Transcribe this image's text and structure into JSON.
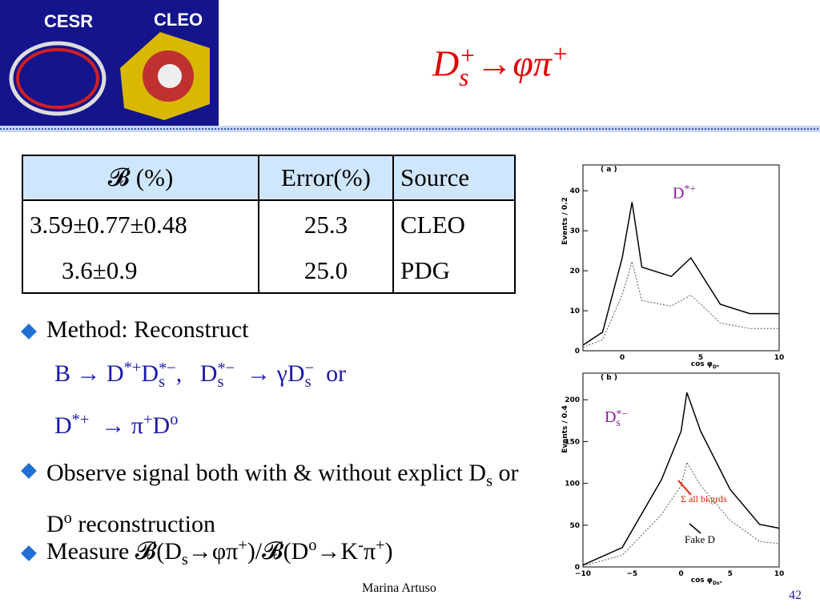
{
  "header": {
    "logo_left": "CESR",
    "logo_right": "CLEO",
    "title": [
      "D",
      {
        "sup": "+",
        "sub": "s"
      },
      "→φπ",
      {
        "sup": "+"
      }
    ]
  },
  "table": {
    "columns": [
      "𝓑 (%)",
      "Error(%)",
      "Source"
    ],
    "rows": [
      [
        "3.59±0.77±0.48",
        "25.3",
        "CLEO"
      ],
      [
        "3.6±0.9",
        "25.0",
        "PDG"
      ]
    ]
  },
  "bullets": [
    {
      "text": [
        "Method: Reconstruct"
      ],
      "formulas": [
        [
          "B → D",
          {
            "sup": "*+"
          },
          "D",
          {
            "sup": "*−",
            "sub": "s"
          },
          ",   D",
          {
            "sup": "*−",
            "sub": "s"
          },
          "  → γD",
          {
            "sup": "−",
            "sub": "s"
          },
          "  or"
        ],
        [
          "D",
          {
            "sup": "*+"
          },
          "  → π",
          {
            "sup": "+"
          },
          "D",
          {
            "sup": "o"
          }
        ]
      ]
    },
    {
      "text": [
        "Observe signal both with & without explict D",
        {
          "sub": "s"
        },
        " or D",
        {
          "sup": "o"
        },
        " reconstruction"
      ]
    },
    {
      "text": [
        "Measure 𝓑(D",
        {
          "sub": "s"
        },
        "→φπ",
        {
          "sup": "+"
        },
        ")/𝓑(D",
        {
          "sup": "o"
        },
        "→K",
        {
          "sup": "-"
        },
        "π",
        {
          "sup": "+"
        },
        ")"
      ]
    }
  ],
  "figures": [
    {
      "panel": "( a )",
      "ylabel": "Events / 0.2",
      "xlabel": [
        "cos φ",
        {
          "sub": "D*"
        }
      ],
      "yticks": [
        "0",
        "10",
        "20",
        "30",
        "40"
      ],
      "xticks": [
        "0",
        "5",
        "10"
      ],
      "annotations": [
        [
          "D",
          {
            "sup": "*+"
          }
        ]
      ]
    },
    {
      "panel": "( b )",
      "ylabel": "Events / 0.4",
      "xlabel": [
        "cos φ",
        {
          "sub": "Ds*"
        }
      ],
      "yticks": [
        "0",
        "50",
        "100",
        "150",
        "200"
      ],
      "xticks": [
        "−10",
        "−5",
        "0",
        "5",
        "10"
      ],
      "annotations": [
        [
          "D",
          {
            "sup": "*−",
            "sub": "s"
          }
        ],
        [
          "Σ all bkgrds"
        ],
        [
          "Fake D"
        ]
      ]
    }
  ],
  "footer": {
    "author": "Marina Artuso",
    "page": "42"
  }
}
